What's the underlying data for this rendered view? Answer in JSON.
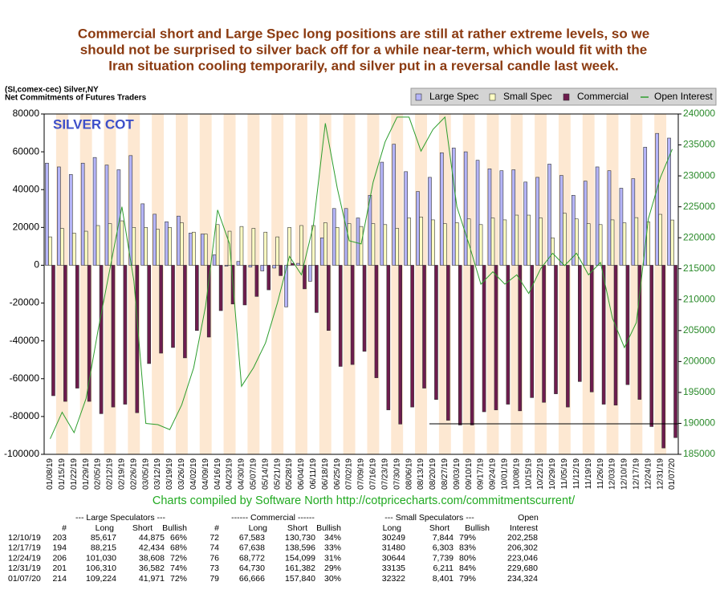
{
  "headline": {
    "lines": [
      "Commercial short and Large Spec long positions are still at rather extreme levels, so we",
      "should not be surprised to silver back off for a while near-term, which would fit with the",
      "Iran situation cooling temporarily, and silver put in a reversal candle last week."
    ]
  },
  "chart_data": {
    "type": "bar",
    "title": "(SI,comex-cec) Silver,NY",
    "subtitle": "Net Commitments of Futures Traders",
    "annotation": "SILVER COT",
    "categories": [
      "01/08/19",
      "01/15/19",
      "01/22/19",
      "01/29/19",
      "02/05/19",
      "02/12/19",
      "02/19/19",
      "02/26/19",
      "03/05/19",
      "03/12/19",
      "03/19/19",
      "03/26/19",
      "04/02/19",
      "04/09/19",
      "04/16/19",
      "04/23/19",
      "04/30/19",
      "05/07/19",
      "05/14/19",
      "05/21/19",
      "05/28/19",
      "06/04/19",
      "06/11/19",
      "06/18/19",
      "06/25/19",
      "07/02/19",
      "07/09/19",
      "07/16/19",
      "07/23/19",
      "07/30/19",
      "08/06/19",
      "08/13/19",
      "08/20/19",
      "08/27/19",
      "09/03/19",
      "09/10/19",
      "09/17/19",
      "09/24/19",
      "10/01/19",
      "10/08/19",
      "10/15/19",
      "10/22/19",
      "10/29/19",
      "11/05/19",
      "11/12/19",
      "11/19/19",
      "11/26/19",
      "12/03/19",
      "12/10/19",
      "12/17/19",
      "12/24/19",
      "12/31/19",
      "01/07/20"
    ],
    "series": [
      {
        "name": "Large Spec",
        "color": "#b4b4f8",
        "values": [
          54000,
          52000,
          48000,
          54000,
          57000,
          53000,
          50500,
          58000,
          32500,
          27000,
          23000,
          26000,
          17000,
          16500,
          5500,
          -500,
          2000,
          -1000,
          -3000,
          -1500,
          -22000,
          1000,
          -8500,
          14500,
          30000,
          30000,
          25000,
          37000,
          54500,
          64000,
          49500,
          39000,
          46500,
          59500,
          62000,
          60000,
          55500,
          51000,
          50000,
          50500,
          44000,
          46500,
          53500,
          47500,
          37000,
          44500,
          52000,
          50000,
          40742,
          45781,
          62422,
          69728,
          67253
        ]
      },
      {
        "name": "Small Spec",
        "color": "#ffffc4",
        "values": [
          15000,
          19500,
          17000,
          18000,
          21000,
          22000,
          23500,
          20000,
          20000,
          19000,
          20000,
          22500,
          17500,
          16500,
          21500,
          18000,
          20500,
          19500,
          17500,
          15000,
          20000,
          21000,
          21000,
          22500,
          20000,
          22000,
          20500,
          22000,
          21500,
          19500,
          25000,
          25500,
          24000,
          22000,
          22500,
          24500,
          21500,
          25000,
          24000,
          26500,
          26500,
          25000,
          14500,
          27500,
          24500,
          22000,
          21500,
          24000,
          22405,
          25177,
          22905,
          26924,
          23921
        ]
      },
      {
        "name": "Commercial",
        "color": "#6e1c4e",
        "values": [
          -69000,
          -72000,
          -65000,
          -72000,
          -78500,
          -75000,
          -73500,
          -78000,
          -52000,
          -46500,
          -43500,
          -49000,
          -34500,
          -38000,
          -24000,
          -20500,
          -21000,
          -16500,
          -13000,
          -5500,
          1000,
          -12500,
          -25000,
          -34500,
          -53500,
          -52500,
          -45500,
          -59500,
          -76500,
          -84000,
          -75000,
          -65000,
          -71000,
          -82000,
          -84500,
          -84500,
          -77500,
          -76500,
          -73500,
          -77000,
          -70000,
          -72500,
          -68000,
          -75000,
          -61500,
          -67000,
          -73500,
          -74000,
          -63147,
          -70958,
          -85327,
          -96652,
          -91174
        ]
      },
      {
        "name": "Open Interest",
        "type": "line",
        "axis": "y2",
        "color": "#2e9e2e",
        "values": [
          187500,
          191800,
          188500,
          194000,
          205000,
          215000,
          225000,
          213000,
          190000,
          189800,
          189000,
          193000,
          199000,
          209000,
          224500,
          219000,
          196000,
          199000,
          203000,
          209500,
          217000,
          214000,
          222000,
          238500,
          228000,
          219500,
          219000,
          229000,
          235500,
          239500,
          239500,
          234000,
          237500,
          239500,
          225000,
          219000,
          212500,
          214500,
          212500,
          214000,
          211000,
          215000,
          217500,
          215500,
          217500,
          214000,
          216000,
          207000,
          202258,
          206302,
          223046,
          229680,
          234324
        ]
      }
    ],
    "ylim": [
      -100000,
      80000
    ],
    "yticks": [
      -100000,
      -80000,
      -60000,
      -40000,
      -20000,
      0,
      20000,
      40000,
      60000,
      80000
    ],
    "y2lim": [
      185000,
      240000
    ],
    "y2ticks": [
      185000,
      190000,
      195000,
      200000,
      205000,
      210000,
      215000,
      220000,
      225000,
      230000,
      235000,
      240000
    ],
    "grid": false,
    "legend": "top-right"
  },
  "footer": "Charts compiled by Software North  http://cotpricecharts.com/commitmentscurrent/",
  "table": {
    "group_headers": [
      "--- Large Speculators ---",
      "------ Commercial ------",
      "--- Small Speculators ---",
      "Open"
    ],
    "columns": [
      "#",
      "Long",
      "Short",
      "Bullish",
      "#",
      "Long",
      "Short",
      "Bullish",
      "Long",
      "Short",
      "Bullish",
      "Interest"
    ],
    "rows": [
      [
        "12/10/19",
        "203",
        "85,617",
        "44,875",
        "66%",
        "72",
        "67,583",
        "130,730",
        "34%",
        "30249",
        "7,844",
        "79%",
        "202,258"
      ],
      [
        "12/17/19",
        "194",
        "88,215",
        "42,434",
        "68%",
        "74",
        "67,638",
        "138,596",
        "33%",
        "31480",
        "6,303",
        "83%",
        "206,302"
      ],
      [
        "12/24/19",
        "206",
        "101,030",
        "38,608",
        "72%",
        "76",
        "68,772",
        "154,099",
        "31%",
        "30644",
        "7,739",
        "80%",
        "223,046"
      ],
      [
        "12/31/19",
        "201",
        "106,310",
        "36,582",
        "74%",
        "73",
        "64,730",
        "161,382",
        "29%",
        "33135",
        "6,211",
        "84%",
        "229,680"
      ],
      [
        "01/07/20",
        "214",
        "109,224",
        "41,971",
        "72%",
        "79",
        "66,666",
        "157,840",
        "30%",
        "32322",
        "8,401",
        "79%",
        "234,324"
      ]
    ]
  }
}
